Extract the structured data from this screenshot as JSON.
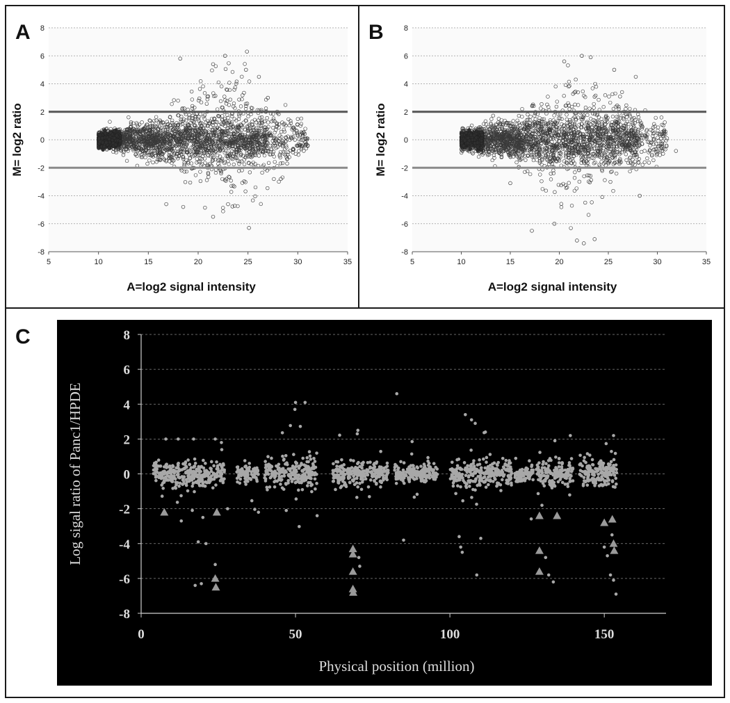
{
  "chart_data": [
    {
      "panel": "A",
      "type": "scatter",
      "xlabel": "A=log2 signal intensity",
      "ylabel": "M= log2 ratio",
      "xlim": [
        5,
        35
      ],
      "ylim": [
        -8,
        8
      ],
      "x_ticks": [
        5,
        10,
        15,
        20,
        25,
        30,
        35
      ],
      "y_ticks": [
        -8,
        -6,
        -4,
        -2,
        0,
        2,
        4,
        6,
        8
      ],
      "grid": true,
      "threshold_lines": [
        2,
        -2
      ],
      "marker": "open-circle",
      "cloud": {
        "x_range": [
          9.5,
          31
        ],
        "dense_band_x": [
          10,
          27
        ],
        "core_spread": 0.55,
        "outlier_x_range": [
          15,
          31
        ],
        "outlier_y_range": [
          -6.3,
          6.4
        ]
      },
      "points": [
        [
          24.9,
          6.3
        ],
        [
          22.7,
          6.0
        ],
        [
          18.2,
          5.8
        ],
        [
          21.5,
          5.4
        ],
        [
          24.8,
          5.0
        ],
        [
          27.0,
          3.0
        ],
        [
          26.1,
          4.5
        ],
        [
          25.1,
          -6.3
        ],
        [
          21.5,
          -5.5
        ],
        [
          18.5,
          -4.8
        ],
        [
          16.8,
          -4.6
        ],
        [
          23.0,
          -4.6
        ],
        [
          28.3,
          -2.8
        ],
        [
          30.1,
          -0.8
        ],
        [
          31.0,
          -0.4
        ]
      ]
    },
    {
      "panel": "B",
      "type": "scatter",
      "xlabel": "A=log2 signal intensity",
      "ylabel": "M= log2 ratio",
      "xlim": [
        5,
        35
      ],
      "ylim": [
        -8,
        8
      ],
      "x_ticks": [
        5,
        10,
        15,
        20,
        25,
        30,
        35
      ],
      "y_ticks": [
        -8,
        -6,
        -4,
        -2,
        0,
        2,
        4,
        6,
        8
      ],
      "grid": true,
      "threshold_lines": [
        2,
        -2
      ],
      "marker": "open-circle",
      "cloud": {
        "x_range": [
          9.5,
          32
        ],
        "dense_band_x": [
          10,
          28
        ],
        "core_spread": 0.6,
        "outlier_x_range": [
          14,
          31
        ],
        "outlier_y_range": [
          -7.4,
          6.0
        ]
      },
      "points": [
        [
          22.3,
          6.0
        ],
        [
          23.2,
          5.9
        ],
        [
          20.5,
          5.6
        ],
        [
          25.6,
          5.0
        ],
        [
          27.8,
          4.5
        ],
        [
          31.9,
          -0.8
        ],
        [
          22.5,
          -7.4
        ],
        [
          23.6,
          -7.1
        ],
        [
          21.8,
          -7.2
        ],
        [
          17.2,
          -6.5
        ],
        [
          19.5,
          -6.0
        ],
        [
          28.2,
          -4.0
        ],
        [
          15.0,
          -3.1
        ]
      ]
    },
    {
      "panel": "C",
      "type": "scatter",
      "xlabel": "Physical position (million)",
      "ylabel": "Log sigal ratio of Panc1/HPDE",
      "xlim": [
        0,
        170
      ],
      "ylim": [
        -8,
        8
      ],
      "x_ticks": [
        0,
        50,
        100,
        150
      ],
      "y_ticks": [
        -8,
        -6,
        -4,
        -2,
        0,
        2,
        4,
        6,
        8
      ],
      "grid": true,
      "background": "#000000",
      "point_color": "#a8a8a8",
      "band_clusters": [
        [
          4,
          27,
          0.35
        ],
        [
          31,
          38,
          0.2
        ],
        [
          40,
          57,
          0.4
        ],
        [
          62,
          80,
          0.35
        ],
        [
          82,
          96,
          0.25
        ],
        [
          100,
          120,
          0.35
        ],
        [
          121,
          127,
          0.2
        ],
        [
          128,
          140,
          0.35
        ],
        [
          142,
          154,
          0.45
        ]
      ],
      "points": [
        [
          50.0,
          4.1
        ],
        [
          53.1,
          4.1
        ],
        [
          49.8,
          3.7
        ],
        [
          82.8,
          4.6
        ],
        [
          105.0,
          3.4
        ],
        [
          107.0,
          3.1
        ],
        [
          108.2,
          2.9
        ],
        [
          111.5,
          2.4
        ],
        [
          70.2,
          2.5
        ],
        [
          70.0,
          2.3
        ],
        [
          8.0,
          2.0
        ],
        [
          12.0,
          2.0
        ],
        [
          17.0,
          2.0
        ],
        [
          24.0,
          2.0
        ],
        [
          26.0,
          1.8
        ],
        [
          139.0,
          2.2
        ],
        [
          134.0,
          1.9
        ],
        [
          153.0,
          2.2
        ],
        [
          13.0,
          -2.7
        ],
        [
          20.0,
          -2.5
        ],
        [
          28.0,
          -2.0
        ],
        [
          38.0,
          -2.2
        ],
        [
          47.0,
          -2.1
        ],
        [
          57.0,
          -2.4
        ],
        [
          18.5,
          -3.9
        ],
        [
          21.0,
          -4.0
        ],
        [
          24.0,
          -5.2
        ],
        [
          17.5,
          -6.4
        ],
        [
          19.5,
          -6.3
        ],
        [
          85.0,
          -3.8
        ],
        [
          103.0,
          -3.6
        ],
        [
          103.5,
          -4.2
        ],
        [
          104.0,
          -4.5
        ],
        [
          110.0,
          -3.7
        ],
        [
          108.7,
          -5.8
        ],
        [
          131.0,
          -4.8
        ],
        [
          132.0,
          -5.8
        ],
        [
          133.5,
          -6.2
        ],
        [
          150.0,
          -4.2
        ],
        [
          151.0,
          -4.7
        ],
        [
          152.0,
          -5.8
        ],
        [
          153.0,
          -6.1
        ],
        [
          153.8,
          -6.9
        ],
        [
          70.5,
          -4.8
        ],
        [
          70.8,
          -5.3
        ],
        [
          152.5,
          -3.5
        ]
      ],
      "triangles": [
        [
          7.5,
          -2.2
        ],
        [
          24.5,
          -2.2
        ],
        [
          24.0,
          -6.0
        ],
        [
          24.2,
          -6.5
        ],
        [
          68.6,
          -4.3
        ],
        [
          68.6,
          -4.6
        ],
        [
          68.6,
          -5.6
        ],
        [
          68.6,
          -6.6
        ],
        [
          68.7,
          -6.8
        ],
        [
          129.0,
          -2.4
        ],
        [
          129.0,
          -4.4
        ],
        [
          129.0,
          -5.6
        ],
        [
          134.7,
          -2.4
        ],
        [
          150.0,
          -2.8
        ],
        [
          152.6,
          -2.6
        ],
        [
          153.0,
          -4.0
        ],
        [
          153.2,
          -4.4
        ]
      ]
    }
  ],
  "panels": {
    "a_label": "A",
    "b_label": "B",
    "c_label": "C"
  }
}
